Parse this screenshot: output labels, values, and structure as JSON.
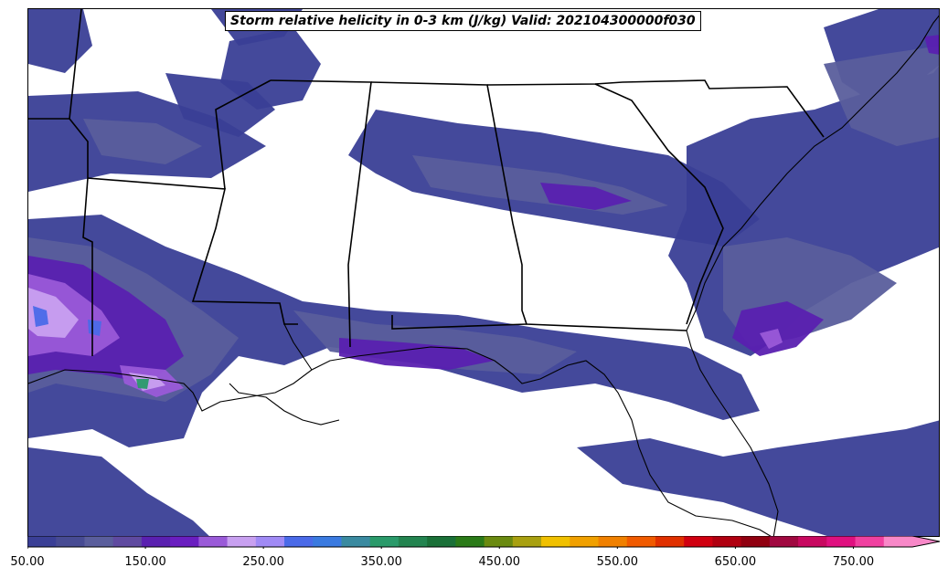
{
  "title": "Storm relative helicity in 0-3 km (J/kg) Valid: 202104300000f030",
  "colorbar": {
    "min": 50,
    "max": 800,
    "step": 25,
    "extend": "max",
    "tick_labels": [
      "50.00",
      "150.00",
      "250.00",
      "350.00",
      "450.00",
      "550.00",
      "650.00",
      "750.00"
    ],
    "colors": [
      "#3a3f96",
      "#474b93",
      "#5a5e9c",
      "#5f4aa0",
      "#5a20b0",
      "#6a1ec0",
      "#9a5ad8",
      "#c8a0f0",
      "#a08af5",
      "#4a6ae8",
      "#3a7ae0",
      "#3a8aa0",
      "#2a9a6a",
      "#238450",
      "#1a7038",
      "#2a7a18",
      "#6a8a10",
      "#a8a010",
      "#f0c000",
      "#f0a000",
      "#f08000",
      "#f05a00",
      "#e03000",
      "#d00010",
      "#b00010",
      "#900010",
      "#a00840",
      "#c80860",
      "#e01080",
      "#f040a0",
      "#f888c8"
    ]
  },
  "map": {
    "region": "Southeastern United States",
    "field_colors": {
      "light": "#3a3f96",
      "medium": "#5a5e9c",
      "strong": "#5a20b0",
      "intense": "#9a5ad8",
      "extreme": "#c8a0f0",
      "peak": "#4a6ae8"
    }
  }
}
